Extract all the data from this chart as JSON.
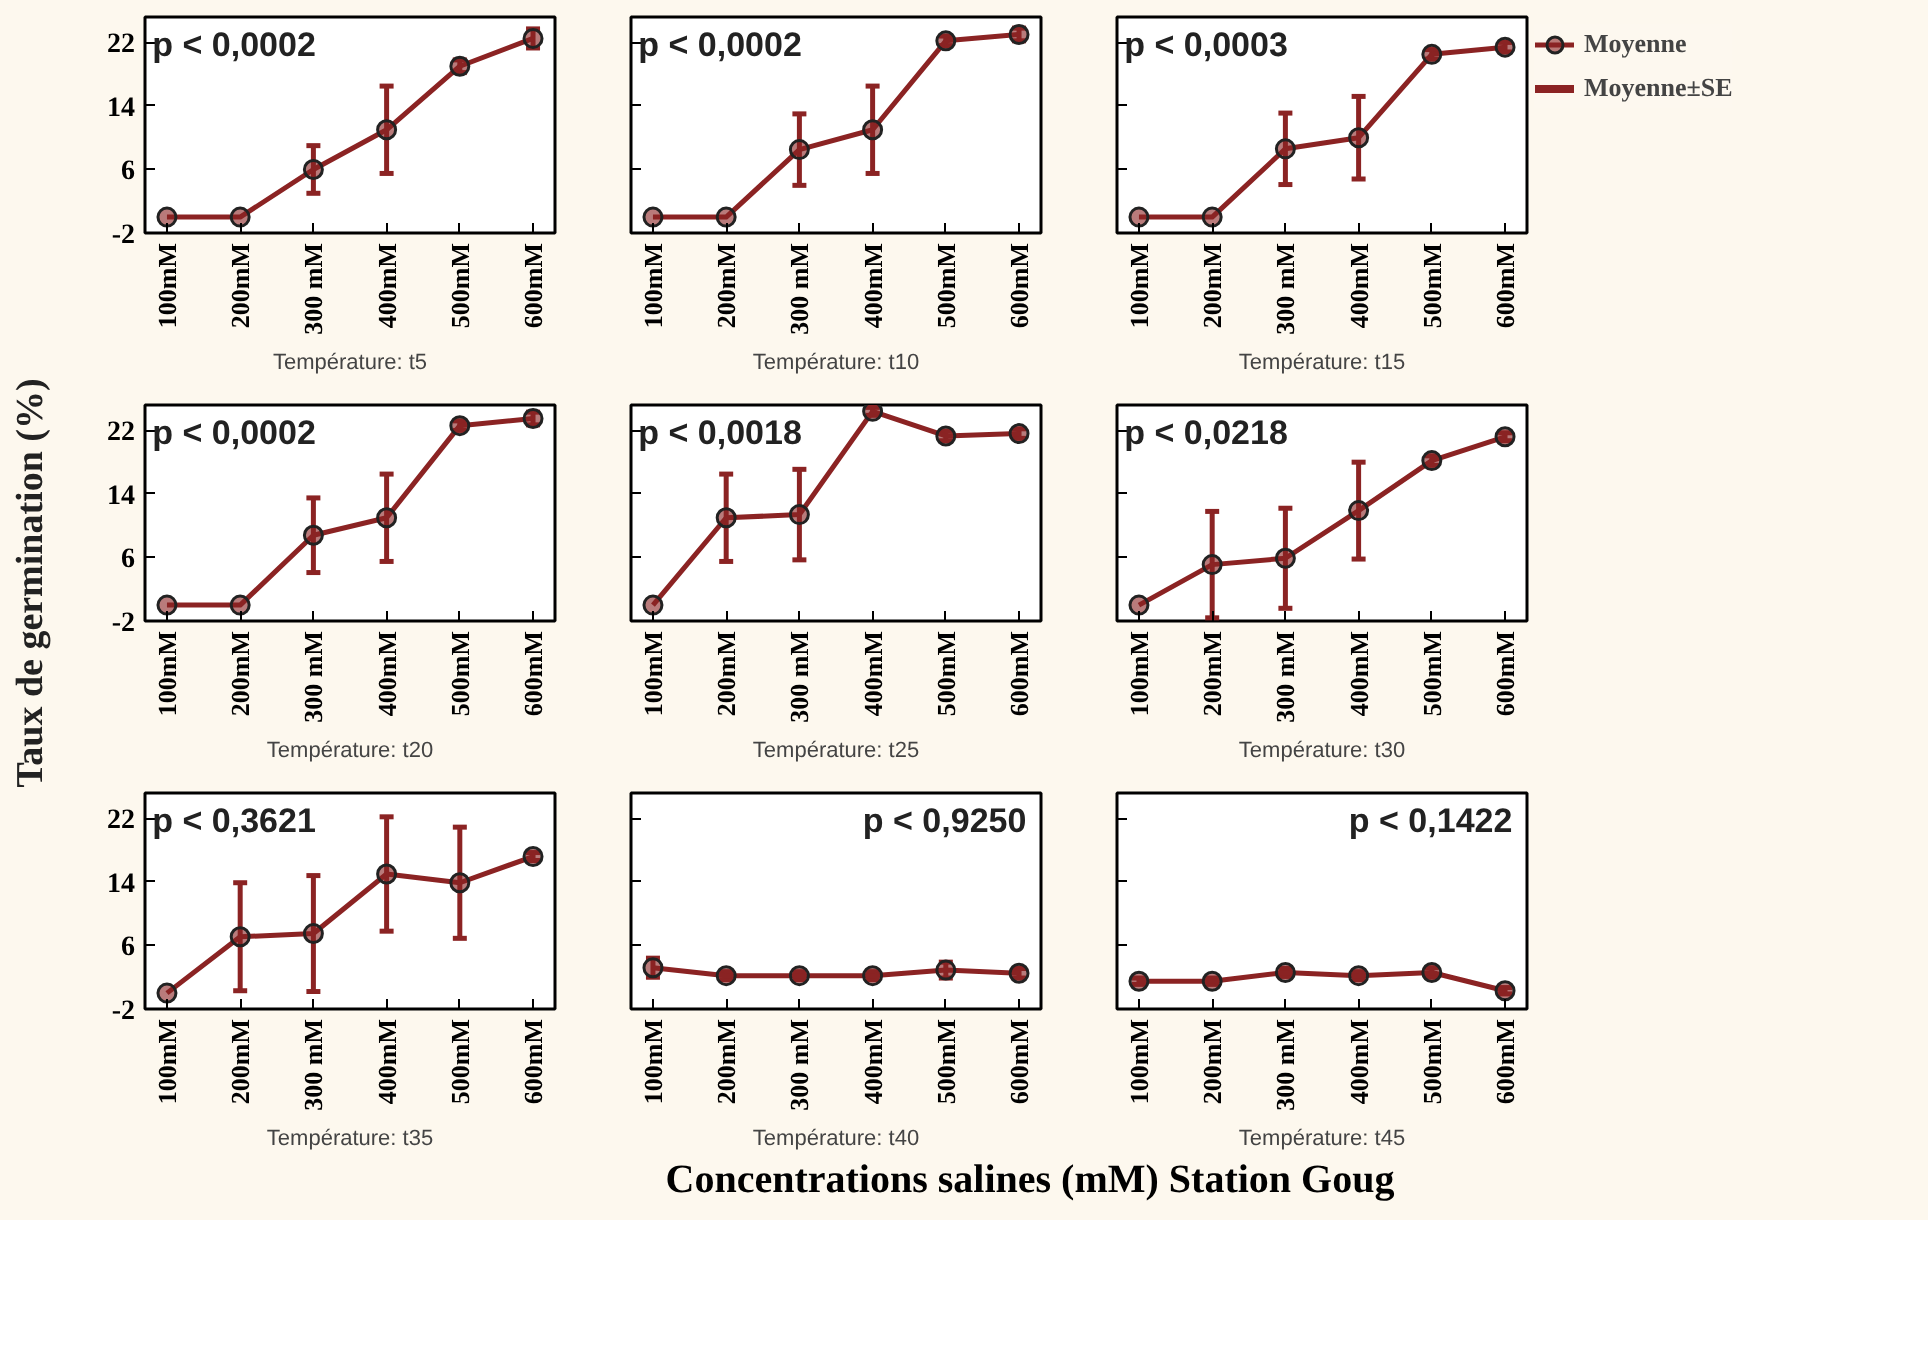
{
  "chart_data": [
    {
      "type": "line",
      "xlabel": "Température: t5",
      "categories": [
        "100mM",
        "200mM",
        "300 mM",
        "400mM",
        "500mM",
        "600mM"
      ],
      "ylim": [
        -2,
        25.2
      ],
      "yticks": [
        -2,
        6,
        14,
        22
      ],
      "tick_labels": "xy",
      "marker": "circle",
      "annotations": [
        "p < 0,0002"
      ],
      "series": [
        {
          "color": "#8b2323",
          "values": [
            0,
            0,
            6,
            11,
            19,
            22.5
          ],
          "errors": [
            null,
            null,
            3,
            5.5,
            0.8,
            1.2
          ]
        }
      ]
    },
    {
      "type": "line",
      "xlabel": "Température: t10",
      "categories": [
        "100mM",
        "200mM",
        "300 mM",
        "400mM",
        "500mM",
        "600mM"
      ],
      "ylim": [
        -2,
        25.2
      ],
      "yticks": [
        -2,
        6,
        14,
        22
      ],
      "tick_labels": "x",
      "marker": "circle",
      "annotations": [
        "p < 0,0002"
      ],
      "series": [
        {
          "color": "#8b2323",
          "values": [
            0,
            0,
            8.5,
            11,
            22.2,
            23
          ],
          "errors": [
            null,
            null,
            4.5,
            5.5,
            0.6,
            0.8
          ]
        }
      ]
    },
    {
      "type": "line",
      "xlabel": "Température: t15",
      "categories": [
        "100mM",
        "200mM",
        "300 mM",
        "400mM",
        "500mM",
        "600mM"
      ],
      "ylim": [
        -2,
        25.2
      ],
      "yticks": [
        -2,
        6,
        14,
        22
      ],
      "tick_labels": "x",
      "marker": "circle",
      "legend": "right",
      "annotations": [
        "p < 0,0003",
        "Moyenne±SE"
      ],
      "series": [
        {
          "name": "Moyenne",
          "color": "#8b2323",
          "values": [
            0,
            0,
            8.6,
            10,
            20.5,
            21.4
          ],
          "errors": [
            null,
            null,
            4.5,
            5.2,
            0.6,
            0.6
          ]
        }
      ]
    },
    {
      "type": "line",
      "xlabel": "Température: t20",
      "ylabel": "Taux de germination (%)",
      "categories": [
        "100mM",
        "200mM",
        "300 mM",
        "400mM",
        "500mM",
        "600mM"
      ],
      "ylim": [
        -2,
        25.2
      ],
      "yticks": [
        -2,
        6,
        14,
        22
      ],
      "tick_labels": "xy",
      "marker": "circle",
      "annotations": [
        "p < 0,0002"
      ],
      "series": [
        {
          "color": "#8b2323",
          "values": [
            0,
            0,
            8.8,
            11,
            22.6,
            23.5
          ],
          "errors": [
            null,
            null,
            4.7,
            5.5,
            0.6,
            0.8
          ]
        }
      ]
    },
    {
      "type": "line",
      "xlabel": "Température: t25",
      "categories": [
        "100mM",
        "200mM",
        "300 mM",
        "400mM",
        "500mM",
        "600mM"
      ],
      "ylim": [
        -2,
        25.2
      ],
      "yticks": [
        -2,
        6,
        14,
        22
      ],
      "tick_labels": "x",
      "marker": "circle",
      "annotations": [
        "p < 0,0018"
      ],
      "series": [
        {
          "color": "#8b2323",
          "values": [
            0,
            11,
            11.4,
            24.4,
            21.3,
            21.6
          ],
          "errors": [
            null,
            5.5,
            5.7,
            0.5,
            0.6,
            0.6
          ]
        }
      ]
    },
    {
      "type": "line",
      "xlabel": "Température: t30",
      "categories": [
        "100mM",
        "200mM",
        "300 mM",
        "400mM",
        "500mM",
        "600mM"
      ],
      "ylim": [
        -2,
        25.2
      ],
      "yticks": [
        -2,
        6,
        14,
        22
      ],
      "tick_labels": "x",
      "marker": "circle",
      "annotations": [
        "p < 0,0218"
      ],
      "series": [
        {
          "color": "#8b2323",
          "values": [
            0,
            5.1,
            5.9,
            11.9,
            18.2,
            21.2
          ],
          "errors": [
            null,
            6.7,
            6.3,
            6.1,
            0.6,
            0.5
          ]
        }
      ]
    },
    {
      "type": "line",
      "xlabel": "Température: t35",
      "categories": [
        "100mM",
        "200mM",
        "300 mM",
        "400mM",
        "500mM",
        "600mM"
      ],
      "ylim": [
        -2,
        25.2
      ],
      "yticks": [
        -2,
        6,
        14,
        22
      ],
      "tick_labels": "xy",
      "marker": "circle",
      "annotations": [
        "p < 0,3621"
      ],
      "series": [
        {
          "color": "#8b2323",
          "values": [
            0,
            7.1,
            7.5,
            15.0,
            13.9,
            17.2
          ],
          "errors": [
            null,
            6.8,
            7.3,
            7.2,
            7.0,
            0.5
          ]
        }
      ]
    },
    {
      "type": "line",
      "xlabel": "Température: t40",
      "categories": [
        "100mM",
        "200mM",
        "300 mM",
        "400mM",
        "500mM",
        "600mM"
      ],
      "ylim": [
        -2,
        25.2
      ],
      "yticks": [
        -2,
        6,
        14,
        22
      ],
      "tick_labels": "x",
      "marker": "circle",
      "annotations": [
        "p < 0,9250",
        "Concentrations salines (mM) Station Goug"
      ],
      "series": [
        {
          "color": "#8b2323",
          "values": [
            3.2,
            2.2,
            2.2,
            2.2,
            2.9,
            2.5
          ],
          "errors": [
            1.2,
            0.5,
            0.5,
            0.5,
            1.0,
            0.6
          ]
        }
      ]
    },
    {
      "type": "line",
      "xlabel": "Température: t45",
      "categories": [
        "100mM",
        "200mM",
        "300 mM",
        "400mM",
        "500mM",
        "600mM"
      ],
      "ylim": [
        -2,
        25.2
      ],
      "yticks": [
        -2,
        6,
        14,
        22
      ],
      "tick_labels": "x",
      "marker": "circle",
      "annotations": [
        "p < 0,1422"
      ],
      "series": [
        {
          "color": "#8b2323",
          "values": [
            1.5,
            1.5,
            2.6,
            2.2,
            2.6,
            0.3
          ],
          "errors": [
            0.4,
            0.4,
            0.5,
            0.5,
            0.6,
            0.4
          ]
        }
      ]
    }
  ]
}
